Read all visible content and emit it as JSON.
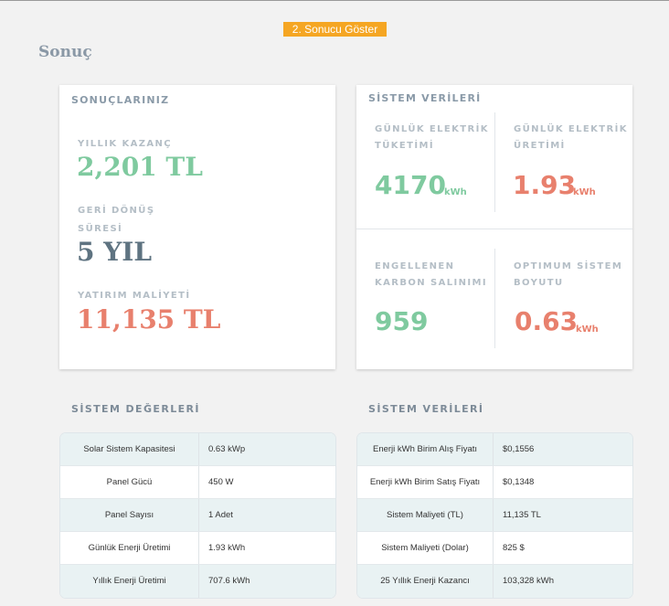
{
  "colors": {
    "green": "#7fca9f",
    "slate": "#5e7381",
    "salmon": "#e8806d",
    "tag": "#f5a623"
  },
  "step_tag": "2. Sonucu Göster",
  "page_title": "Sonuç",
  "results_card": {
    "heading": "SONUÇLARINIZ",
    "annual_gain_label": "YILLIK KAZANÇ",
    "annual_gain_value": "2,201 TL",
    "payback_label_1": "GERİ DÖNÜŞ",
    "payback_label_2": "SÜRESİ",
    "payback_value": "5 YIL",
    "investment_label": "YATIRIM MALİYETİ",
    "investment_value": "11,135 TL"
  },
  "system_card": {
    "heading": "SİSTEM VERİLERİ",
    "daily_consumption_label_1": "GÜNLÜK ELEKTRİK",
    "daily_consumption_label_2": "TÜKETİMİ",
    "daily_consumption_value": "4170",
    "daily_consumption_unit": "kWh",
    "daily_production_label_1": "GÜNLÜK ELEKTRİK",
    "daily_production_label_2": "ÜRETİMİ",
    "daily_production_value": "1.93",
    "daily_production_unit": "kWh",
    "carbon_label_1": "ENGELLENEN",
    "carbon_label_2": "KARBON SALINIMI",
    "carbon_value": "959",
    "optimum_label_1": "OPTIMUM SİSTEM",
    "optimum_label_2": "BOYUTU",
    "optimum_value": "0.63",
    "optimum_unit": "kWh"
  },
  "system_values": {
    "heading": "SİSTEM DEĞERLERİ",
    "rows": [
      {
        "key": "Solar Sistem Kapasitesi",
        "value": "0.63 kWp"
      },
      {
        "key": "Panel Gücü",
        "value": "450 W"
      },
      {
        "key": "Panel Sayısı",
        "value": "1 Adet"
      },
      {
        "key": "Günlük Enerji Üretimi",
        "value": "1.93 kWh"
      },
      {
        "key": "Yıllık Enerji Üretimi",
        "value": "707.6 kWh"
      }
    ]
  },
  "system_data": {
    "heading": "SİSTEM VERİLERİ",
    "rows": [
      {
        "key": "Enerji kWh Birim Alış Fiyatı",
        "value": "$0,1556"
      },
      {
        "key": "Enerji kWh Birim Satış Fiyatı",
        "value": "$0,1348"
      },
      {
        "key": "Sistem Maliyeti (TL)",
        "value": "11,135 TL"
      },
      {
        "key": "Sistem Maliyeti (Dolar)",
        "value": "825 $"
      },
      {
        "key": "25 Yıllık Enerji Kazancı",
        "value": "103,328 kWh"
      }
    ]
  }
}
